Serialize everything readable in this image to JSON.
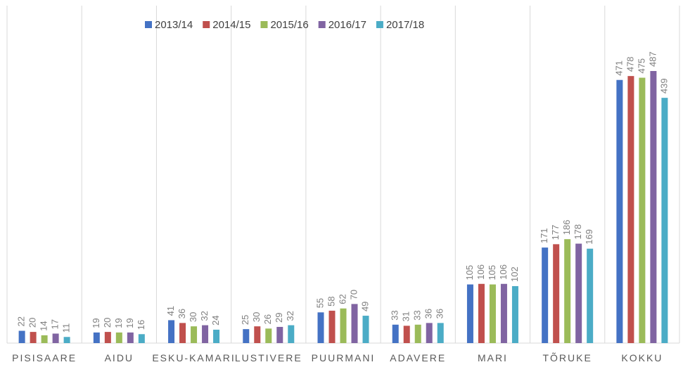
{
  "chart_data": {
    "type": "bar",
    "categories": [
      "PISISAARE",
      "AIDU",
      "ESKU-KAMARI",
      "LUSTIVERE",
      "PUURMANI",
      "ADAVERE",
      "MARI",
      "TÕRUKE",
      "KOKKU"
    ],
    "series": [
      {
        "name": "2013/14",
        "color": "#4472c4",
        "values": [
          22,
          19,
          41,
          25,
          55,
          33,
          105,
          171,
          471
        ]
      },
      {
        "name": "2014/15",
        "color": "#c0504d",
        "values": [
          20,
          20,
          36,
          30,
          58,
          31,
          106,
          177,
          478
        ]
      },
      {
        "name": "2015/16",
        "color": "#9bbb59",
        "values": [
          14,
          19,
          30,
          26,
          62,
          33,
          105,
          186,
          475
        ]
      },
      {
        "name": "2016/17",
        "color": "#8064a2",
        "values": [
          17,
          19,
          32,
          29,
          70,
          36,
          106,
          178,
          487
        ]
      },
      {
        "name": "2017/18",
        "color": "#4bacc6",
        "values": [
          11,
          16,
          24,
          32,
          49,
          36,
          102,
          169,
          439
        ]
      }
    ],
    "legend": "top"
  }
}
